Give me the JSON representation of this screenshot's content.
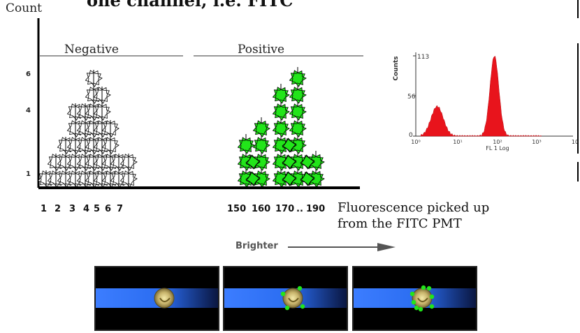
{
  "title_fragment": "one channel, i.e. FITC",
  "count_label": "Count",
  "negative_label": "Negative",
  "positive_label": "Positive",
  "y_ticks": [
    "6",
    "4",
    "1"
  ],
  "neg_x_labels": [
    "1",
    "2",
    "3",
    "4",
    "5",
    "6",
    "7"
  ],
  "pos_x_labels": [
    "150",
    "160",
    "170",
    "..",
    "190"
  ],
  "fluorescence_text": "Fluorescence picked up from the FITC PMT",
  "brighter_label": "Brighter",
  "histogram": {
    "y_axis_label": "Counts",
    "y_ticks": [
      "113",
      "56",
      "0"
    ],
    "x_ticks": [
      "10⁰",
      "10¹",
      "10²",
      "10³",
      "10"
    ],
    "x_axis_label": "FL 1 Log",
    "fill_color": "#e8141c"
  },
  "colors": {
    "positive_cell": "#22e51a",
    "negative_cell": "#ffffff",
    "beam": "#2a6cf0"
  },
  "chart_data": {
    "type": "histogram",
    "xlabel": "FL 1 Log",
    "ylabel": "Counts",
    "ylim": [
      0,
      113
    ],
    "x_scale": "log",
    "peaks": [
      {
        "center": 3.5,
        "height": 42
      },
      {
        "center": 100,
        "height": 113
      }
    ]
  }
}
